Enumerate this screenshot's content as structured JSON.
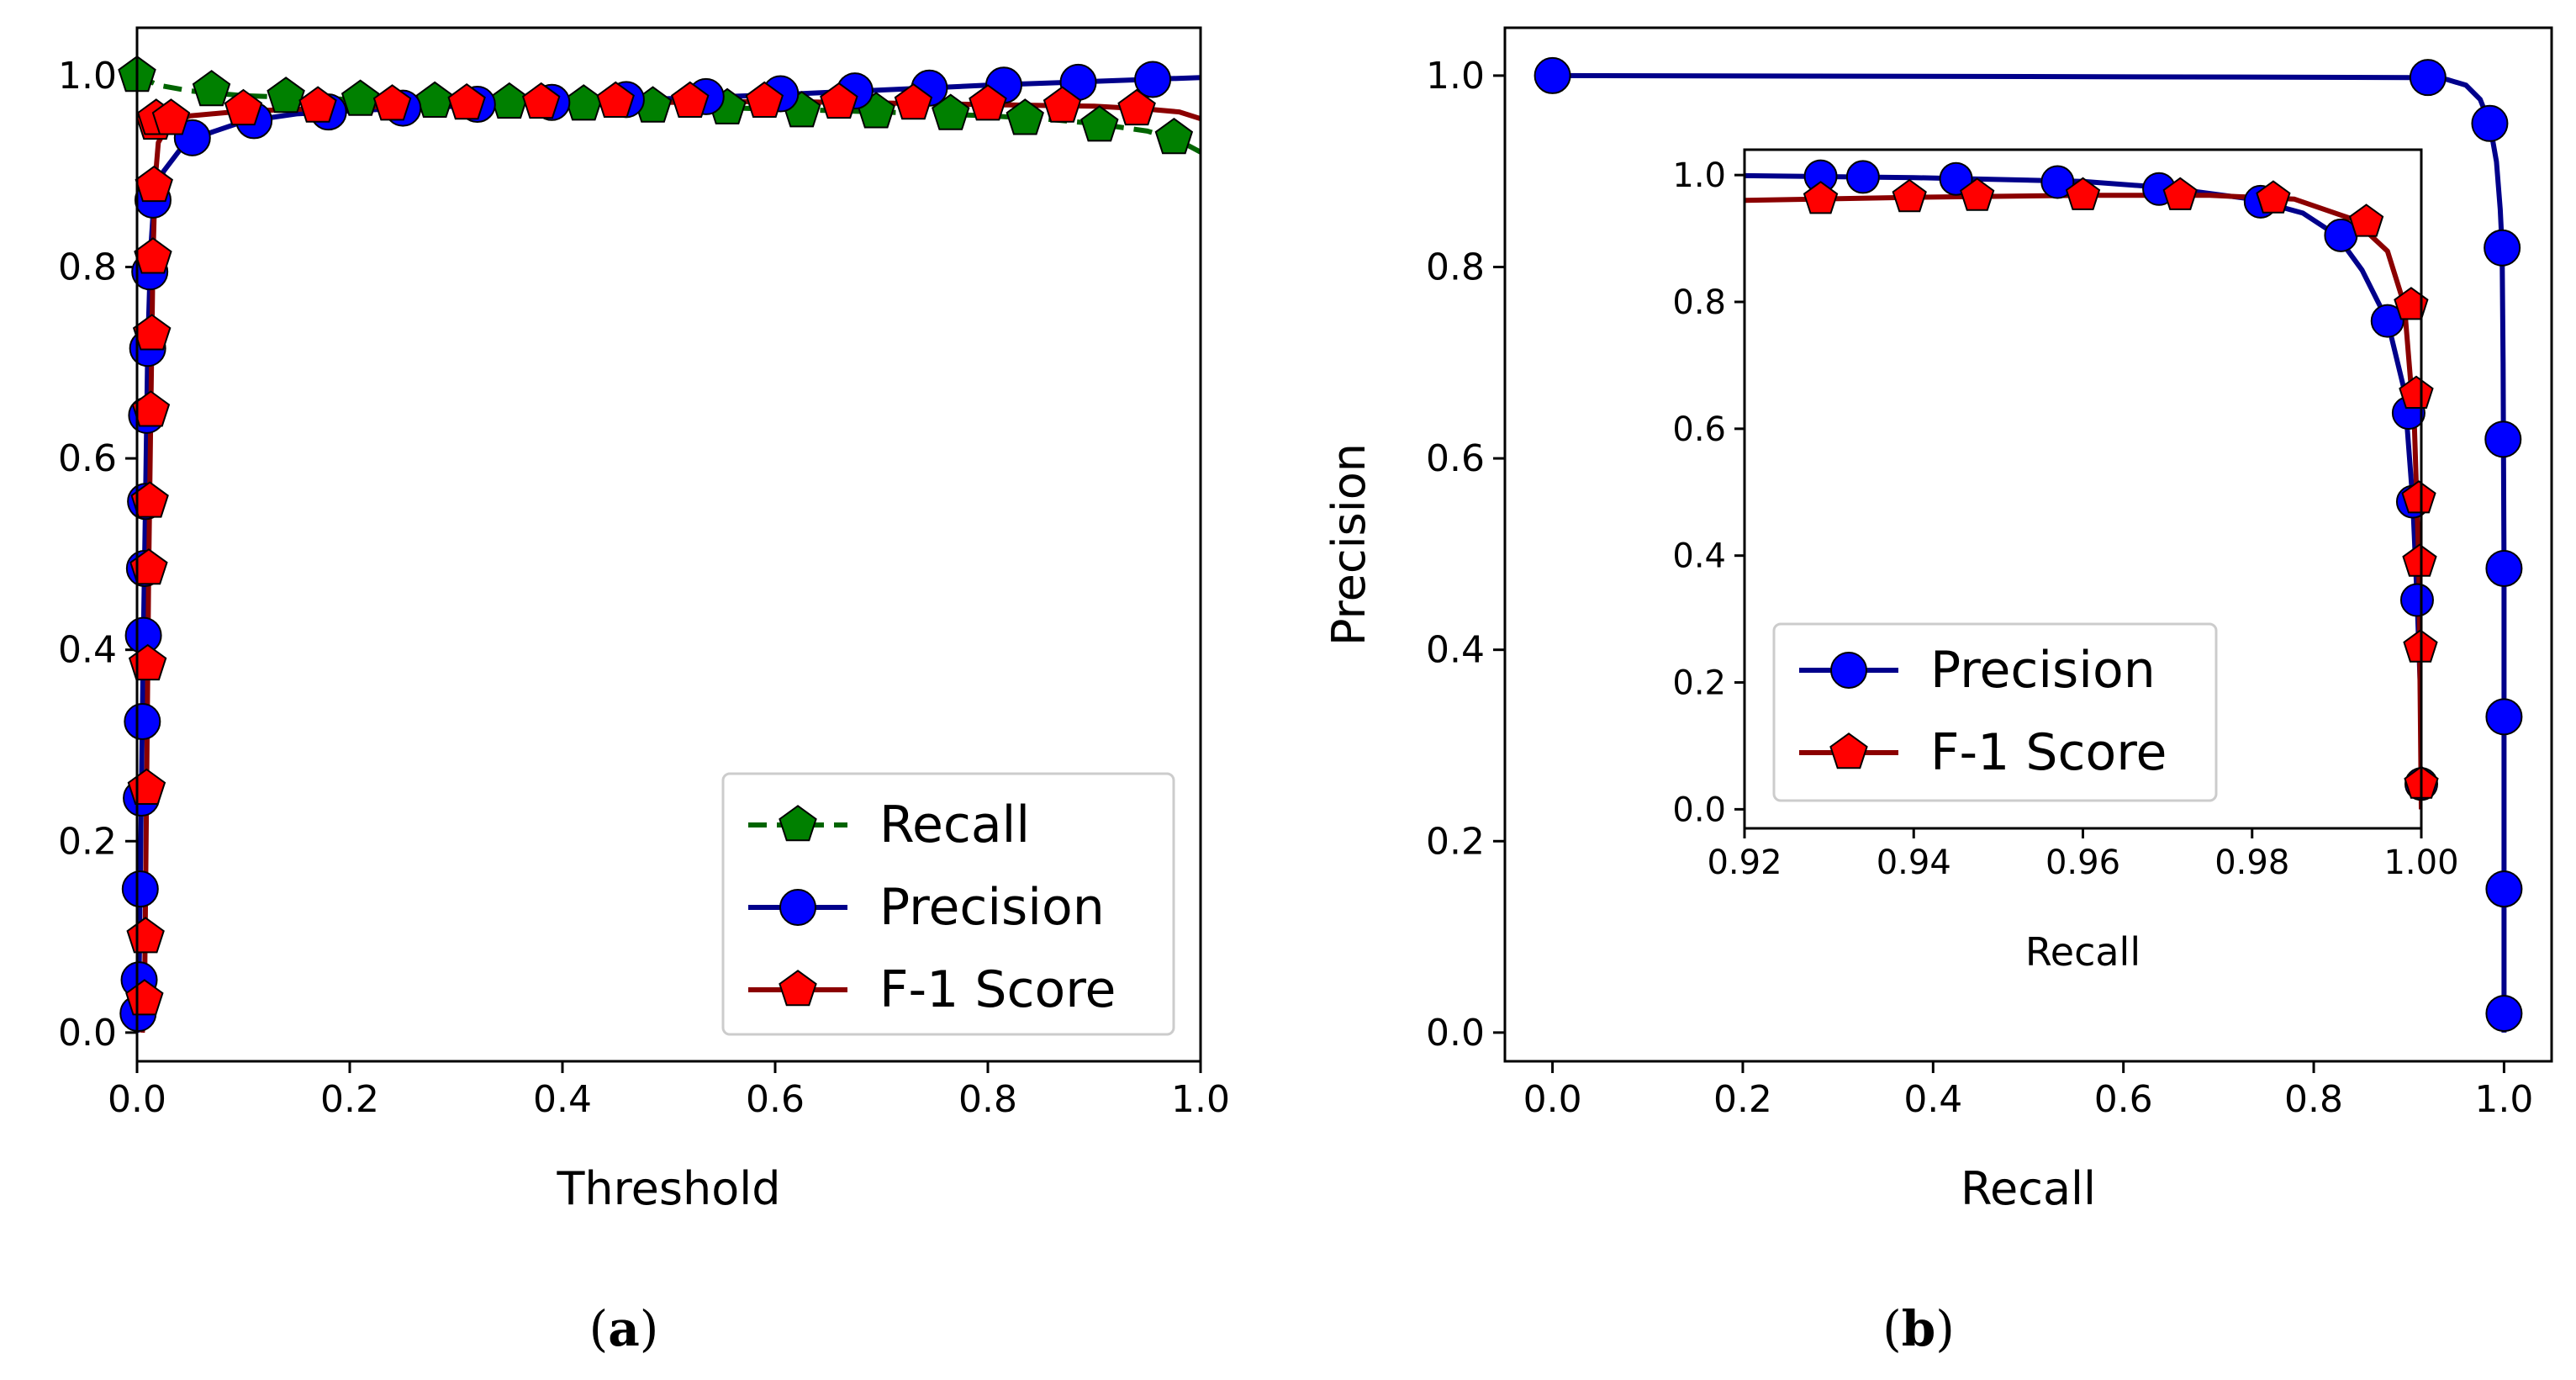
{
  "colors": {
    "recall": "#006400",
    "recall_marker": "#008000",
    "precision": "#00008B",
    "precision_marker": "#0000FF",
    "f1": "#8B0000",
    "f1_marker": "#FF0000"
  },
  "chart_data": [
    {
      "id": "a",
      "type": "line",
      "caption": "a",
      "xlabel": "Threshold",
      "ylabel": "",
      "xlim": [
        0.0,
        1.0
      ],
      "ylim": [
        -0.03,
        1.05
      ],
      "xticks": [
        "0.0",
        "0.2",
        "0.4",
        "0.6",
        "0.8",
        "1.0"
      ],
      "yticks": [
        "0.0",
        "0.2",
        "0.4",
        "0.6",
        "0.8",
        "1.0"
      ],
      "legend_position": "lower-right",
      "series": [
        {
          "name": "Recall",
          "style": "dashed",
          "marker": "pentagon",
          "x": [
            0.0,
            0.07,
            0.14,
            0.21,
            0.28,
            0.35,
            0.42,
            0.485,
            0.555,
            0.625,
            0.695,
            0.765,
            0.835,
            0.905,
            0.975
          ],
          "y": [
            1.0,
            0.985,
            0.978,
            0.975,
            0.973,
            0.972,
            0.97,
            0.968,
            0.966,
            0.963,
            0.962,
            0.96,
            0.955,
            0.948,
            0.935
          ],
          "curve_x": [
            0.0,
            0.02,
            0.05,
            0.1,
            0.2,
            0.3,
            0.4,
            0.5,
            0.6,
            0.7,
            0.8,
            0.85,
            0.9,
            0.95,
            0.98,
            1.0
          ],
          "curve_y": [
            1.0,
            0.99,
            0.984,
            0.979,
            0.975,
            0.973,
            0.971,
            0.968,
            0.965,
            0.962,
            0.958,
            0.955,
            0.95,
            0.942,
            0.932,
            0.92
          ]
        },
        {
          "name": "Precision",
          "style": "solid",
          "marker": "circle",
          "x": [
            0.001,
            0.002,
            0.003,
            0.004,
            0.005,
            0.006,
            0.007,
            0.008,
            0.009,
            0.01,
            0.012,
            0.015,
            0.052,
            0.11,
            0.18,
            0.25,
            0.32,
            0.39,
            0.46,
            0.535,
            0.605,
            0.675,
            0.745,
            0.815,
            0.885,
            0.955
          ],
          "y": [
            0.02,
            0.055,
            0.15,
            0.245,
            0.325,
            0.415,
            0.485,
            0.555,
            0.645,
            0.715,
            0.795,
            0.87,
            0.935,
            0.953,
            0.962,
            0.966,
            0.97,
            0.972,
            0.975,
            0.978,
            0.981,
            0.984,
            0.987,
            0.99,
            0.993,
            0.996
          ],
          "curve_x": [
            0.0,
            0.002,
            0.004,
            0.006,
            0.008,
            0.01,
            0.013,
            0.016,
            0.025,
            0.04,
            0.06,
            0.1,
            0.15,
            0.25,
            0.4,
            0.6,
            0.8,
            1.0
          ],
          "curve_y": [
            0.0,
            0.06,
            0.245,
            0.415,
            0.555,
            0.715,
            0.82,
            0.87,
            0.9,
            0.922,
            0.937,
            0.952,
            0.96,
            0.966,
            0.972,
            0.98,
            0.99,
            0.998
          ]
        },
        {
          "name": "F-1 Score",
          "style": "solid",
          "marker": "pentagon",
          "x": [
            0.007,
            0.008,
            0.009,
            0.01,
            0.011,
            0.012,
            0.013,
            0.014,
            0.015,
            0.016,
            0.017,
            0.018,
            0.032,
            0.1,
            0.17,
            0.24,
            0.31,
            0.38,
            0.45,
            0.52,
            0.59,
            0.66,
            0.73,
            0.8,
            0.87,
            0.94
          ],
          "y": [
            0.035,
            0.1,
            0.255,
            0.385,
            0.485,
            0.555,
            0.65,
            0.73,
            0.81,
            0.885,
            0.95,
            0.955,
            0.955,
            0.965,
            0.968,
            0.97,
            0.971,
            0.972,
            0.973,
            0.973,
            0.973,
            0.972,
            0.971,
            0.97,
            0.968,
            0.965
          ],
          "curve_x": [
            0.005,
            0.007,
            0.009,
            0.011,
            0.013,
            0.015,
            0.017,
            0.02,
            0.03,
            0.05,
            0.1,
            0.3,
            0.6,
            0.9,
            0.95,
            0.98,
            1.0
          ],
          "curve_y": [
            0.0,
            0.035,
            0.255,
            0.485,
            0.65,
            0.81,
            0.89,
            0.93,
            0.95,
            0.958,
            0.963,
            0.97,
            0.973,
            0.968,
            0.965,
            0.962,
            0.955
          ]
        }
      ]
    },
    {
      "id": "b",
      "type": "line",
      "caption": "b",
      "xlabel": "Recall",
      "ylabel": "Precision",
      "xlim": [
        -0.05,
        1.05
      ],
      "ylim": [
        -0.03,
        1.05
      ],
      "xticks": [
        "0.0",
        "0.2",
        "0.4",
        "0.6",
        "0.8",
        "1.0"
      ],
      "yticks": [
        "0.0",
        "0.2",
        "0.4",
        "0.6",
        "0.8",
        "1.0"
      ],
      "series": [
        {
          "name": "Precision",
          "style": "solid",
          "marker": "circle",
          "x": [
            0.0,
            0.92,
            0.985,
            0.998,
            0.999,
            1.0,
            1.0,
            1.0,
            1.0
          ],
          "y": [
            1.0,
            0.998,
            0.95,
            0.82,
            0.62,
            0.485,
            0.33,
            0.15,
            0.02
          ],
          "curve_x": [
            0.0,
            0.5,
            0.9,
            0.94,
            0.96,
            0.975,
            0.985,
            0.992,
            0.996,
            0.998,
            0.999,
            1.0,
            1.0,
            1.0
          ],
          "curve_y": [
            1.0,
            0.999,
            0.998,
            0.996,
            0.99,
            0.975,
            0.95,
            0.91,
            0.86,
            0.82,
            0.7,
            0.485,
            0.15,
            0.0
          ]
        }
      ]
    },
    {
      "id": "b-inset",
      "type": "line",
      "xlabel": "Recall",
      "ylabel": "",
      "xlim": [
        0.92,
        1.0
      ],
      "ylim": [
        -0.03,
        1.04
      ],
      "xticks": [
        "0.92",
        "0.94",
        "0.96",
        "0.98",
        "1.00"
      ],
      "yticks": [
        "0.0",
        "0.2",
        "0.4",
        "0.6",
        "0.8",
        "1.0"
      ],
      "legend_position": "lower-left",
      "series": [
        {
          "name": "Precision",
          "style": "solid",
          "marker": "circle",
          "x": [
            0.929,
            0.934,
            0.945,
            0.957,
            0.969,
            0.981,
            0.9905,
            0.996,
            0.9985,
            0.999,
            0.9995,
            1.0
          ],
          "y": [
            0.998,
            0.997,
            0.994,
            0.989,
            0.978,
            0.958,
            0.905,
            0.77,
            0.625,
            0.485,
            0.33,
            0.04
          ],
          "curve_x": [
            0.92,
            0.94,
            0.96,
            0.97,
            0.98,
            0.986,
            0.99,
            0.993,
            0.996,
            0.998,
            0.999,
            0.9995,
            1.0,
            1.0
          ],
          "curve_y": [
            0.999,
            0.996,
            0.99,
            0.98,
            0.962,
            0.94,
            0.905,
            0.85,
            0.77,
            0.66,
            0.485,
            0.33,
            0.15,
            0.0
          ]
        },
        {
          "name": "F-1 Score",
          "style": "solid",
          "marker": "pentagon",
          "x": [
            0.929,
            0.9395,
            0.9475,
            0.96,
            0.9715,
            0.9825,
            0.9935,
            0.9988,
            0.9994,
            0.9997,
            0.9998,
            0.9999,
            1.0
          ],
          "y": [
            0.962,
            0.965,
            0.967,
            0.968,
            0.968,
            0.963,
            0.926,
            0.795,
            0.655,
            0.49,
            0.39,
            0.255,
            0.04
          ],
          "curve_x": [
            0.92,
            0.94,
            0.96,
            0.975,
            0.985,
            0.992,
            0.996,
            0.998,
            0.9992,
            0.9997,
            1.0
          ],
          "curve_y": [
            0.96,
            0.965,
            0.968,
            0.968,
            0.962,
            0.93,
            0.88,
            0.795,
            0.6,
            0.39,
            0.0
          ]
        }
      ]
    }
  ]
}
